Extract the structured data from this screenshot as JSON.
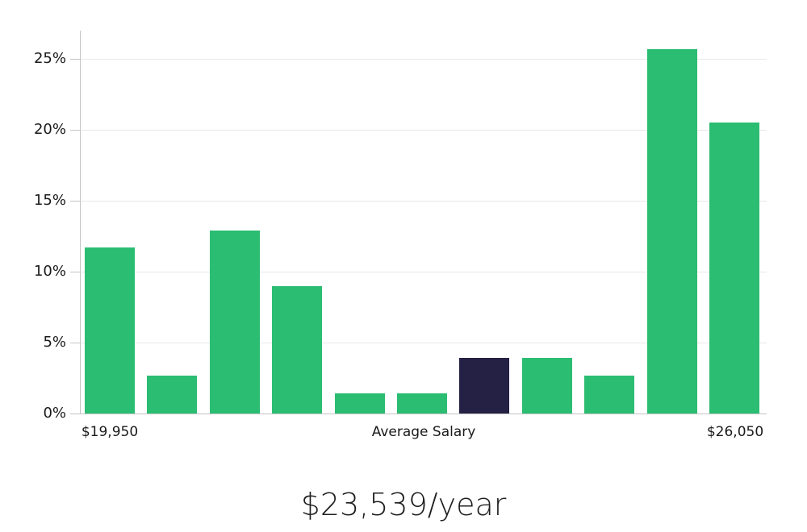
{
  "chart_data": {
    "type": "bar",
    "title": "$23,539/year",
    "xlabel": "",
    "ylabel": "",
    "ylim": [
      0,
      27
    ],
    "grid": true,
    "y_ticks": [
      {
        "value": 0,
        "label": "0%"
      },
      {
        "value": 5,
        "label": "5%"
      },
      {
        "value": 10,
        "label": "10%"
      },
      {
        "value": 15,
        "label": "15%"
      },
      {
        "value": 20,
        "label": "20%"
      },
      {
        "value": 25,
        "label": "25%"
      }
    ],
    "x_axis_labels": [
      "$19,950",
      "Average Salary",
      "$26,050"
    ],
    "values": [
      11.7,
      2.7,
      12.9,
      9.0,
      1.4,
      1.4,
      3.9,
      3.9,
      2.7,
      25.7,
      20.5
    ],
    "highlight_index": 6,
    "colors": {
      "bar": "#2bbd72",
      "highlight_bar": "#252144",
      "gridline": "#e8e8e8",
      "axis": "#c4c4c4",
      "tick_label": "#1a1a1a",
      "title": "#1f1f1f"
    }
  }
}
